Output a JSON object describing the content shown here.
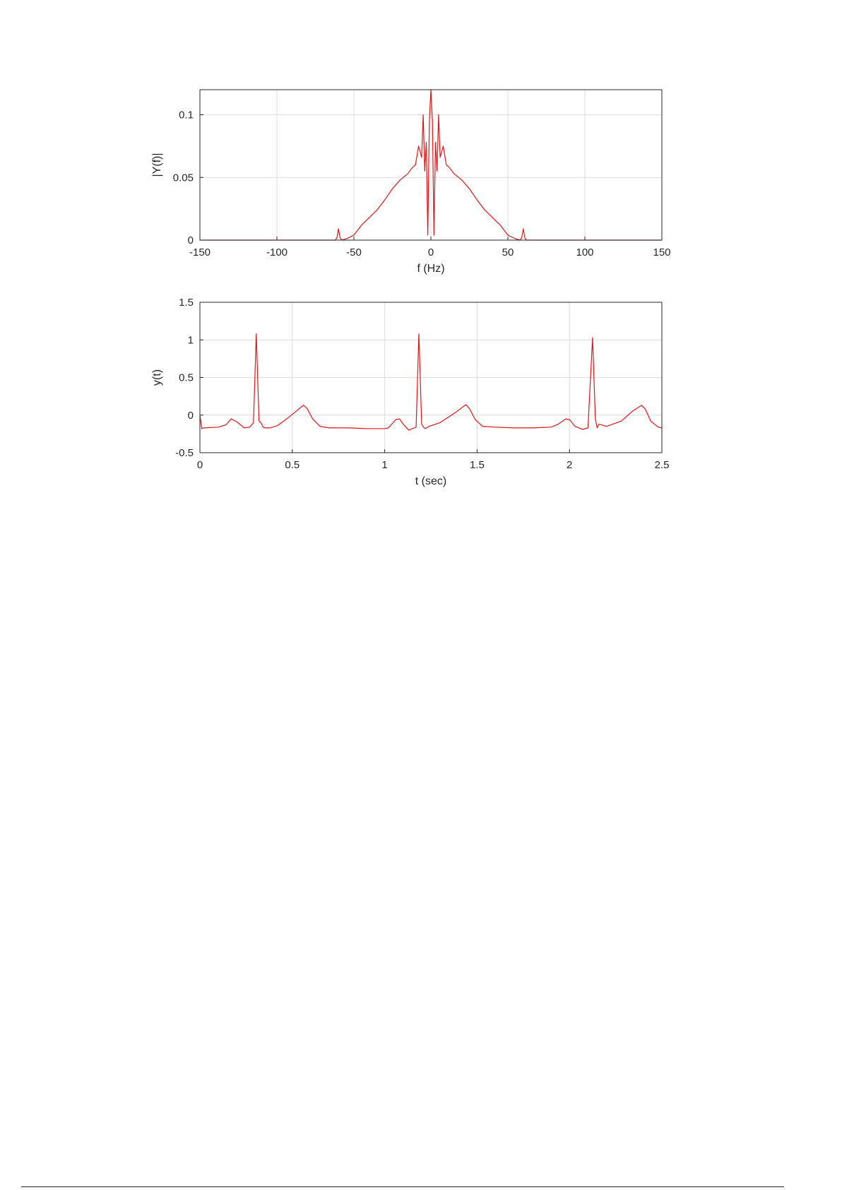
{
  "colors": {
    "trace": "#e01515",
    "grid": "#dcdcdc",
    "axis": "#262626"
  },
  "chart_data": [
    {
      "type": "line",
      "xlabel": "f (Hz)",
      "ylabel": "|Y(f)|",
      "xlim": [
        -150,
        150
      ],
      "ylim": [
        0,
        0.12
      ],
      "xticks": [
        -150,
        -100,
        -50,
        0,
        50,
        100,
        150
      ],
      "yticks": [
        0,
        0.05,
        0.1
      ],
      "xtick_labels": [
        "-150",
        "-100",
        "-50",
        "0",
        "50",
        "100",
        "150"
      ],
      "ytick_labels": [
        "0",
        "0.05",
        "0.1"
      ],
      "grid": true,
      "series": [
        {
          "x": [
            -150,
            -62,
            -61,
            -60,
            -59,
            -58,
            -55,
            -50,
            -45,
            -40,
            -35,
            -30,
            -25,
            -20,
            -15,
            -12,
            -10,
            -8,
            -6,
            -5,
            -4,
            -3,
            -2,
            -1,
            0,
            1,
            2,
            3,
            4,
            5,
            6,
            8,
            10,
            12,
            15,
            20,
            25,
            30,
            35,
            40,
            45,
            50,
            55,
            58,
            59,
            60,
            61,
            62,
            150
          ],
          "y": [
            0,
            0,
            0.002,
            0.009,
            0.002,
            0,
            0.001,
            0.004,
            0.012,
            0.018,
            0.024,
            0.032,
            0.041,
            0.048,
            0.053,
            0.058,
            0.06,
            0.075,
            0.066,
            0.1,
            0.055,
            0.078,
            0.004,
            0.095,
            0.12,
            0.095,
            0.004,
            0.078,
            0.055,
            0.1,
            0.066,
            0.075,
            0.06,
            0.058,
            0.053,
            0.048,
            0.041,
            0.032,
            0.024,
            0.018,
            0.012,
            0.004,
            0.001,
            0,
            0.002,
            0.009,
            0.002,
            0,
            0
          ]
        }
      ]
    },
    {
      "type": "line",
      "xlabel": "t (sec)",
      "ylabel": "y(t)",
      "xlim": [
        0,
        2.5
      ],
      "ylim": [
        -0.5,
        1.5
      ],
      "xticks": [
        0,
        0.5,
        1,
        1.5,
        2,
        2.5
      ],
      "yticks": [
        -0.5,
        0,
        0.5,
        1,
        1.5
      ],
      "xtick_labels": [
        "0",
        "0.5",
        "1",
        "1.5",
        "2",
        "2.5"
      ],
      "ytick_labels": [
        "-0.5",
        "0",
        "0.5",
        "1",
        "1.5"
      ],
      "grid": true,
      "series": [
        {
          "x": [
            0,
            0.01,
            0.02,
            0.1,
            0.14,
            0.17,
            0.2,
            0.24,
            0.27,
            0.29,
            0.305,
            0.32,
            0.33,
            0.34,
            0.35,
            0.38,
            0.42,
            0.47,
            0.52,
            0.56,
            0.58,
            0.61,
            0.65,
            0.7,
            0.8,
            0.9,
            1.0,
            1.02,
            1.06,
            1.08,
            1.1,
            1.13,
            1.15,
            1.17,
            1.185,
            1.2,
            1.21,
            1.22,
            1.24,
            1.3,
            1.38,
            1.44,
            1.46,
            1.49,
            1.53,
            1.6,
            1.7,
            1.8,
            1.9,
            1.94,
            1.98,
            2.0,
            2.03,
            2.07,
            2.1,
            2.125,
            2.14,
            2.15,
            2.16,
            2.2,
            2.28,
            2.34,
            2.39,
            2.41,
            2.44,
            2.48,
            2.5
          ],
          "y": [
            0,
            -0.18,
            -0.17,
            -0.16,
            -0.13,
            -0.05,
            -0.09,
            -0.17,
            -0.16,
            -0.1,
            1.08,
            -0.08,
            -0.1,
            -0.15,
            -0.17,
            -0.17,
            -0.14,
            -0.05,
            0.05,
            0.13,
            0.09,
            -0.05,
            -0.15,
            -0.17,
            -0.17,
            -0.18,
            -0.18,
            -0.17,
            -0.06,
            -0.05,
            -0.12,
            -0.2,
            -0.18,
            -0.16,
            1.08,
            -0.12,
            -0.16,
            -0.18,
            -0.15,
            -0.1,
            0.03,
            0.14,
            0.08,
            -0.06,
            -0.15,
            -0.16,
            -0.17,
            -0.17,
            -0.16,
            -0.12,
            -0.05,
            -0.06,
            -0.15,
            -0.19,
            -0.17,
            1.03,
            -0.05,
            -0.17,
            -0.12,
            -0.15,
            -0.08,
            0.05,
            0.13,
            0.08,
            -0.08,
            -0.16,
            -0.17
          ]
        }
      ]
    }
  ]
}
